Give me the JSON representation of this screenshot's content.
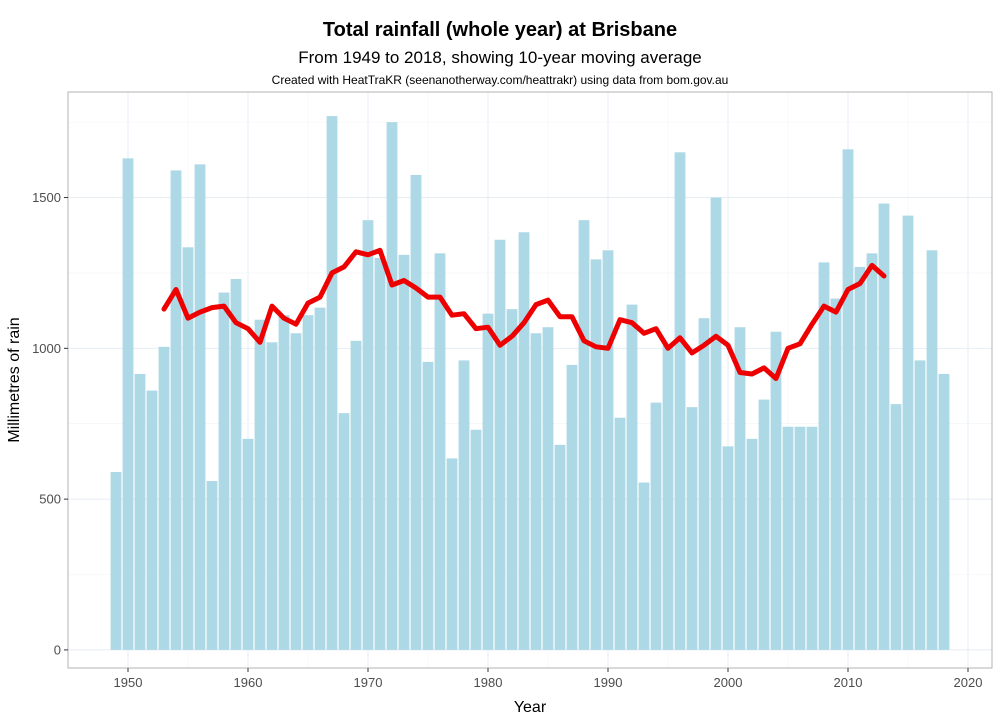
{
  "chart_data": {
    "type": "bar",
    "title": "Total rainfall (whole year) at Brisbane",
    "subtitle": "From 1949 to 2018, showing 10-year moving average",
    "caption": "Created with HeatTraKR (seenanotherway.com/heattrakr) using data from bom.gov.au",
    "xlabel": "Year",
    "ylabel": "Millimetres of rain",
    "xlim": [
      1945,
      2022
    ],
    "ylim": [
      -60,
      1850
    ],
    "xticks": [
      1950,
      1960,
      1970,
      1980,
      1990,
      2000,
      2010,
      2020
    ],
    "yticks": [
      0,
      500,
      1000,
      1500
    ],
    "grid": true,
    "legend": "none",
    "bar_color": "#add8e6",
    "line_color": "#ee0000",
    "series": [
      {
        "type": "bar",
        "x": [
          1949,
          1950,
          1951,
          1952,
          1953,
          1954,
          1955,
          1956,
          1957,
          1958,
          1959,
          1960,
          1961,
          1962,
          1963,
          1964,
          1965,
          1966,
          1967,
          1968,
          1969,
          1970,
          1971,
          1972,
          1973,
          1974,
          1975,
          1976,
          1977,
          1978,
          1979,
          1980,
          1981,
          1982,
          1983,
          1984,
          1985,
          1986,
          1987,
          1988,
          1989,
          1990,
          1991,
          1992,
          1993,
          1994,
          1995,
          1996,
          1997,
          1998,
          1999,
          2000,
          2001,
          2002,
          2003,
          2004,
          2005,
          2006,
          2007,
          2008,
          2009,
          2010,
          2011,
          2012,
          2013,
          2014,
          2015,
          2016,
          2017,
          2018
        ],
        "values": [
          590,
          1630,
          915,
          860,
          1005,
          1590,
          1335,
          1610,
          560,
          1185,
          1230,
          700,
          1095,
          1020,
          1110,
          1050,
          1110,
          1135,
          1770,
          785,
          1025,
          1425,
          1300,
          1750,
          1310,
          1575,
          955,
          1315,
          635,
          960,
          730,
          1115,
          1360,
          1130,
          1385,
          1050,
          1070,
          680,
          945,
          1425,
          1295,
          1325,
          770,
          1145,
          555,
          820,
          1010,
          1650,
          805,
          1100,
          1500,
          675,
          1070,
          700,
          830,
          1055,
          740,
          740,
          740,
          1285,
          1165,
          1660,
          1270,
          1315,
          1480,
          815,
          1440,
          960,
          1325,
          915
        ]
      },
      {
        "type": "line",
        "name": "10-year moving average",
        "x": [
          1953,
          1954,
          1955,
          1956,
          1957,
          1958,
          1959,
          1960,
          1961,
          1962,
          1963,
          1964,
          1965,
          1966,
          1967,
          1968,
          1969,
          1970,
          1971,
          1972,
          1973,
          1974,
          1975,
          1976,
          1977,
          1978,
          1979,
          1980,
          1981,
          1982,
          1983,
          1984,
          1985,
          1986,
          1987,
          1988,
          1989,
          1990,
          1991,
          1992,
          1993,
          1994,
          1995,
          1996,
          1997,
          1998,
          1999,
          2000,
          2001,
          2002,
          2003,
          2004,
          2005,
          2006,
          2007,
          2008,
          2009,
          2010,
          2011,
          2012,
          2013
        ],
        "values": [
          1130,
          1195,
          1100,
          1120,
          1135,
          1140,
          1085,
          1065,
          1020,
          1140,
          1100,
          1080,
          1150,
          1170,
          1250,
          1270,
          1320,
          1310,
          1325,
          1210,
          1225,
          1200,
          1170,
          1170,
          1110,
          1115,
          1065,
          1070,
          1010,
          1040,
          1085,
          1145,
          1160,
          1105,
          1105,
          1025,
          1005,
          1000,
          1095,
          1085,
          1050,
          1065,
          1000,
          1035,
          985,
          1010,
          1040,
          1010,
          920,
          915,
          935,
          900,
          1000,
          1015,
          1080,
          1140,
          1120,
          1195,
          1215,
          1275,
          1240
        ]
      }
    ]
  }
}
